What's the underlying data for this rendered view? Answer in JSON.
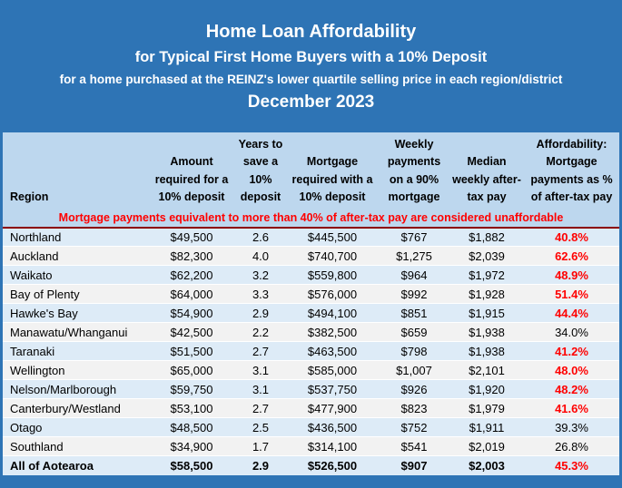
{
  "title_block": {
    "line1": "Home Loan Affordability",
    "line2": "for Typical First Home Buyers with a 10% Deposit",
    "line3": "for a home purchased at the REINZ's lower quartile selling price in each region/district",
    "line4": "December 2023"
  },
  "colors": {
    "title_background": "#2E74B5",
    "header_background": "#BDD7EE",
    "row_alt_blue": "#DDEBF7",
    "row_alt_gray": "#F2F2F2",
    "unaffordable_red": "#FF0000",
    "divider_dark_red": "#8B0000",
    "text_black": "#000000",
    "title_text_white": "#FFFFFF"
  },
  "table": {
    "columns": [
      "Region",
      "Amount required for a 10% deposit",
      "Years to save a 10% deposit",
      "Mortgage required with a 10% deposit",
      "Weekly payments on a 90% mortgage",
      "Median weekly after-tax pay",
      "Affordability: Mortgage payments as % of after-tax pay"
    ],
    "note": "Mortgage payments equivalent to more than 40% of after-tax pay are considered unaffordable",
    "rows": [
      {
        "cells": [
          "Northland",
          "$49,500",
          "2.6",
          "$445,500",
          "$767",
          "$1,882",
          "40.8%"
        ],
        "afford_red": true,
        "bold": false
      },
      {
        "cells": [
          "Auckland",
          "$82,300",
          "4.0",
          "$740,700",
          "$1,275",
          "$2,039",
          "62.6%"
        ],
        "afford_red": true,
        "bold": false
      },
      {
        "cells": [
          "Waikato",
          "$62,200",
          "3.2",
          "$559,800",
          "$964",
          "$1,972",
          "48.9%"
        ],
        "afford_red": true,
        "bold": false
      },
      {
        "cells": [
          "Bay of Plenty",
          "$64,000",
          "3.3",
          "$576,000",
          "$992",
          "$1,928",
          "51.4%"
        ],
        "afford_red": true,
        "bold": false
      },
      {
        "cells": [
          "Hawke's Bay",
          "$54,900",
          "2.9",
          "$494,100",
          "$851",
          "$1,915",
          "44.4%"
        ],
        "afford_red": true,
        "bold": false
      },
      {
        "cells": [
          "Manawatu/Whanganui",
          "$42,500",
          "2.2",
          "$382,500",
          "$659",
          "$1,938",
          "34.0%"
        ],
        "afford_red": false,
        "bold": false
      },
      {
        "cells": [
          "Taranaki",
          "$51,500",
          "2.7",
          "$463,500",
          "$798",
          "$1,938",
          "41.2%"
        ],
        "afford_red": true,
        "bold": false
      },
      {
        "cells": [
          "Wellington",
          "$65,000",
          "3.1",
          "$585,000",
          "$1,007",
          "$2,101",
          "48.0%"
        ],
        "afford_red": true,
        "bold": false
      },
      {
        "cells": [
          "Nelson/Marlborough",
          "$59,750",
          "3.1",
          "$537,750",
          "$926",
          "$1,920",
          "48.2%"
        ],
        "afford_red": true,
        "bold": false
      },
      {
        "cells": [
          "Canterbury/Westland",
          "$53,100",
          "2.7",
          "$477,900",
          "$823",
          "$1,979",
          "41.6%"
        ],
        "afford_red": true,
        "bold": false
      },
      {
        "cells": [
          "Otago",
          "$48,500",
          "2.5",
          "$436,500",
          "$752",
          "$1,911",
          "39.3%"
        ],
        "afford_red": false,
        "bold": false
      },
      {
        "cells": [
          "Southland",
          "$34,900",
          "1.7",
          "$314,100",
          "$541",
          "$2,019",
          "26.8%"
        ],
        "afford_red": false,
        "bold": false
      },
      {
        "cells": [
          "All of Aotearoa",
          "$58,500",
          "2.9",
          "$526,500",
          "$907",
          "$2,003",
          "45.3%"
        ],
        "afford_red": true,
        "bold": true
      }
    ]
  },
  "chart_data": {
    "type": "table",
    "title": "Home Loan Affordability for Typical First Home Buyers with a 10% Deposit, for a home purchased at the REINZ's lower quartile selling price in each region/district, December 2023",
    "note": "Mortgage payments equivalent to more than 40% of after-tax pay are considered unaffordable",
    "columns": [
      "Region",
      "Amount required for a 10% deposit",
      "Years to save a 10% deposit",
      "Mortgage required with a 10% deposit",
      "Weekly payments on a 90% mortgage",
      "Median weekly after-tax pay",
      "Affordability: Mortgage payments as % of after-tax pay"
    ],
    "rows": [
      [
        "Northland",
        49500,
        2.6,
        445500,
        767,
        1882,
        40.8
      ],
      [
        "Auckland",
        82300,
        4.0,
        740700,
        1275,
        2039,
        62.6
      ],
      [
        "Waikato",
        62200,
        3.2,
        559800,
        964,
        1972,
        48.9
      ],
      [
        "Bay of Plenty",
        64000,
        3.3,
        576000,
        992,
        1928,
        51.4
      ],
      [
        "Hawke's Bay",
        54900,
        2.9,
        494100,
        851,
        1915,
        44.4
      ],
      [
        "Manawatu/Whanganui",
        42500,
        2.2,
        382500,
        659,
        1938,
        34.0
      ],
      [
        "Taranaki",
        51500,
        2.7,
        463500,
        798,
        1938,
        41.2
      ],
      [
        "Wellington",
        65000,
        3.1,
        585000,
        1007,
        2101,
        48.0
      ],
      [
        "Nelson/Marlborough",
        59750,
        3.1,
        537750,
        926,
        1920,
        48.2
      ],
      [
        "Canterbury/Westland",
        53100,
        2.7,
        477900,
        823,
        1979,
        41.6
      ],
      [
        "Otago",
        48500,
        2.5,
        436500,
        752,
        1911,
        39.3
      ],
      [
        "Southland",
        34900,
        1.7,
        314100,
        541,
        2019,
        26.8
      ],
      [
        "All of Aotearoa",
        58500,
        2.9,
        526500,
        907,
        2003,
        45.3
      ]
    ],
    "unaffordable_threshold_pct": 40
  }
}
